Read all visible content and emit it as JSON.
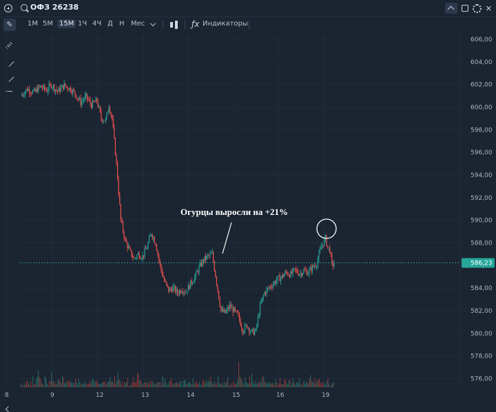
{
  "header": {
    "ticker": "ОФЗ 26238"
  },
  "toolbar": {
    "timeframes": [
      "1М",
      "5М",
      "15М",
      "1Ч",
      "4Ч",
      "Д",
      "Н",
      "Мес"
    ],
    "active_timeframe": "15М",
    "indicators_label": "Индикаторы"
  },
  "chart_data": {
    "type": "candlestick",
    "x_tick_labels": [
      "8",
      "9",
      "12",
      "13",
      "14",
      "15",
      "16",
      "19"
    ],
    "y_tick_labels": [
      "576,00",
      "578,00",
      "580,00",
      "582,00",
      "584,00",
      "586,00",
      "588,00",
      "590,00",
      "592,00",
      "594,00",
      "596,00",
      "598,00",
      "600,00",
      "602,00",
      "604,00",
      "606,00"
    ],
    "ylim": [
      575,
      606.3
    ],
    "last_price": 586.23,
    "last_price_label": "586,23",
    "annotation": "Огурцы выросли на +21%",
    "colors": {
      "up": "#26a69a",
      "down": "#ef5350",
      "background": "#1b2431",
      "grid": "#253041",
      "price_line": "#26a69a"
    },
    "price_path": [
      [
        0,
        601.0
      ],
      [
        6,
        601.6
      ],
      [
        12,
        601.3
      ],
      [
        18,
        601.8
      ],
      [
        24,
        601.5
      ],
      [
        28,
        602.0
      ],
      [
        34,
        601.4
      ],
      [
        40,
        601.9
      ],
      [
        46,
        601.6
      ],
      [
        50,
        601.2
      ],
      [
        55,
        600.4
      ],
      [
        60,
        600.9
      ],
      [
        65,
        600.2
      ],
      [
        70,
        600.6
      ],
      [
        74,
        599.0
      ],
      [
        78,
        598.8
      ],
      [
        81,
        600.2
      ],
      [
        84,
        599.0
      ],
      [
        88,
        595.0
      ],
      [
        92,
        590.0
      ],
      [
        96,
        588.2
      ],
      [
        100,
        587.3
      ],
      [
        104,
        586.6
      ],
      [
        108,
        587.0
      ],
      [
        112,
        586.8
      ],
      [
        116,
        587.6
      ],
      [
        120,
        588.9
      ],
      [
        124,
        588.0
      ],
      [
        128,
        586.0
      ],
      [
        132,
        584.6
      ],
      [
        136,
        583.8
      ],
      [
        140,
        584.0
      ],
      [
        144,
        583.6
      ],
      [
        148,
        583.9
      ],
      [
        152,
        583.7
      ],
      [
        156,
        584.4
      ],
      [
        160,
        585.0
      ],
      [
        164,
        585.8
      ],
      [
        168,
        586.5
      ],
      [
        172,
        586.8
      ],
      [
        176,
        587.0
      ],
      [
        180,
        584.5
      ],
      [
        184,
        582.0
      ],
      [
        188,
        581.8
      ],
      [
        192,
        582.4
      ],
      [
        196,
        582.0
      ],
      [
        200,
        581.5
      ],
      [
        204,
        580.3
      ],
      [
        208,
        580.7
      ],
      [
        212,
        580.1
      ],
      [
        216,
        580.2
      ],
      [
        220,
        582.4
      ],
      [
        224,
        583.6
      ],
      [
        228,
        584.0
      ],
      [
        232,
        584.4
      ],
      [
        236,
        584.8
      ],
      [
        240,
        585.0
      ],
      [
        244,
        585.4
      ],
      [
        248,
        585.2
      ],
      [
        252,
        585.6
      ],
      [
        256,
        585.3
      ],
      [
        260,
        585.5
      ],
      [
        264,
        585.4
      ],
      [
        268,
        585.8
      ],
      [
        272,
        586.2
      ],
      [
        276,
        587.6
      ],
      [
        280,
        588.4
      ],
      [
        282,
        587.6
      ],
      [
        284,
        587.4
      ],
      [
        286,
        586.0
      ],
      [
        288,
        586.2
      ]
    ],
    "volume": [
      2,
      3,
      1,
      4,
      2,
      3,
      5,
      2,
      1,
      3,
      2,
      6,
      3,
      2,
      4,
      8,
      12,
      6,
      4,
      5,
      3,
      2,
      6,
      4,
      3,
      2,
      5,
      3,
      7,
      4,
      3,
      4,
      2,
      3,
      5,
      4,
      3,
      2,
      6,
      5,
      4,
      3,
      2,
      3,
      5,
      3,
      4,
      2,
      3,
      2,
      5,
      3,
      2,
      4,
      6,
      3,
      2,
      3,
      4,
      5,
      3,
      2,
      3,
      4,
      2,
      3,
      5,
      3,
      2,
      4,
      3,
      2,
      4,
      3,
      2,
      5,
      3,
      4,
      3,
      2,
      3,
      4,
      6,
      3,
      4,
      3,
      5,
      2,
      3,
      8,
      4,
      3
    ]
  }
}
